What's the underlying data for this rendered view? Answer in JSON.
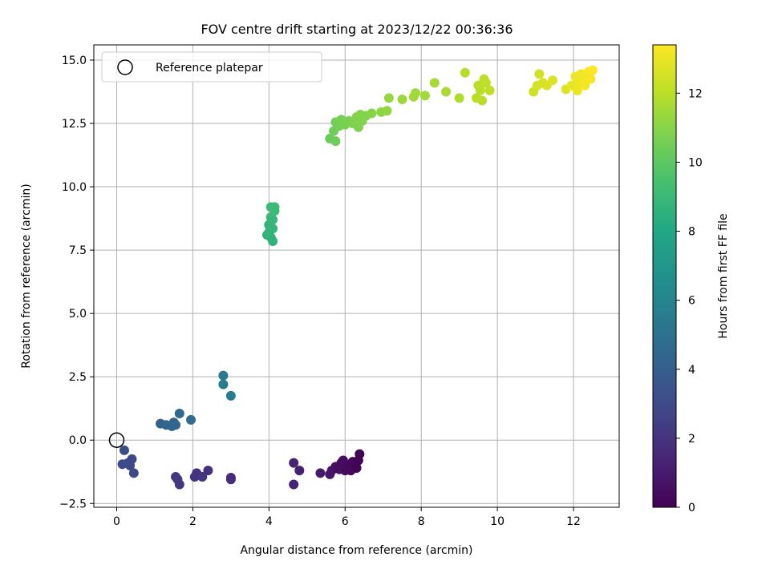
{
  "chart_data": {
    "type": "scatter",
    "title": "FOV centre drift starting at 2023/12/22 00:36:36",
    "xlabel": "Angular distance from reference (arcmin)",
    "ylabel": "Rotation from reference (arcmin)",
    "xlim": [
      -0.6,
      13.2
    ],
    "ylim": [
      -2.65,
      15.6
    ],
    "x_ticks": [
      0,
      2,
      4,
      6,
      8,
      10,
      12
    ],
    "x_tick_labels": [
      "0",
      "2",
      "4",
      "6",
      "8",
      "10",
      "12"
    ],
    "y_ticks": [
      -2.5,
      0.0,
      2.5,
      5.0,
      7.5,
      10.0,
      12.5,
      15.0
    ],
    "y_tick_labels": [
      "−2.5",
      "0.0",
      "2.5",
      "5.0",
      "7.5",
      "10.0",
      "12.5",
      "15.0"
    ],
    "grid": true,
    "colormap": "viridis",
    "colorbar": {
      "label": "Hours from first FF file",
      "min": 0,
      "max": 13.4,
      "ticks": [
        0,
        2,
        4,
        6,
        8,
        10,
        12
      ],
      "tick_labels": [
        "0",
        "2",
        "4",
        "6",
        "8",
        "10",
        "12"
      ]
    },
    "legend": {
      "position": "top-left",
      "entries": [
        "Reference platepar"
      ]
    },
    "reference_point": {
      "x": 0.0,
      "y": 0.0,
      "marker": "open-circle",
      "color": "#000000"
    },
    "points": [
      {
        "x": 4.65,
        "y": -0.9,
        "c": 1.3
      },
      {
        "x": 4.8,
        "y": -1.2,
        "c": 1.2
      },
      {
        "x": 4.65,
        "y": -1.75,
        "c": 1.3
      },
      {
        "x": 5.35,
        "y": -1.3,
        "c": 0.9
      },
      {
        "x": 5.6,
        "y": -1.35,
        "c": 0.8
      },
      {
        "x": 5.65,
        "y": -1.2,
        "c": 0.7
      },
      {
        "x": 5.75,
        "y": -1.05,
        "c": 0.6
      },
      {
        "x": 5.85,
        "y": -1.15,
        "c": 0.5
      },
      {
        "x": 5.95,
        "y": -0.8,
        "c": 0.4
      },
      {
        "x": 6.05,
        "y": -1.0,
        "c": 0.3
      },
      {
        "x": 6.15,
        "y": -1.2,
        "c": 0.3
      },
      {
        "x": 6.2,
        "y": -0.85,
        "c": 0.2
      },
      {
        "x": 6.3,
        "y": -1.1,
        "c": 0.1
      },
      {
        "x": 6.35,
        "y": -0.8,
        "c": 0.05
      },
      {
        "x": 6.38,
        "y": -0.55,
        "c": 0.0
      },
      {
        "x": 5.9,
        "y": -0.9,
        "c": 0.4
      },
      {
        "x": 6.0,
        "y": -1.2,
        "c": 0.35
      },
      {
        "x": 1.55,
        "y": -1.45,
        "c": 2.1
      },
      {
        "x": 1.6,
        "y": -1.55,
        "c": 2.2
      },
      {
        "x": 1.65,
        "y": -1.75,
        "c": 2.2
      },
      {
        "x": 2.05,
        "y": -1.45,
        "c": 2.0
      },
      {
        "x": 2.1,
        "y": -1.3,
        "c": 1.9
      },
      {
        "x": 2.25,
        "y": -1.45,
        "c": 2.0
      },
      {
        "x": 2.4,
        "y": -1.2,
        "c": 1.8
      },
      {
        "x": 3.0,
        "y": -1.55,
        "c": 1.7
      },
      {
        "x": 3.0,
        "y": -1.48,
        "c": 1.7
      },
      {
        "x": 0.15,
        "y": -0.95,
        "c": 3.0
      },
      {
        "x": 0.2,
        "y": -0.4,
        "c": 3.2
      },
      {
        "x": 0.3,
        "y": -0.9,
        "c": 3.1
      },
      {
        "x": 0.35,
        "y": -1.0,
        "c": 3.0
      },
      {
        "x": 0.4,
        "y": -0.75,
        "c": 3.0
      },
      {
        "x": 0.45,
        "y": -1.3,
        "c": 2.9
      },
      {
        "x": 1.15,
        "y": 0.65,
        "c": 4.2
      },
      {
        "x": 1.3,
        "y": 0.6,
        "c": 4.3
      },
      {
        "x": 1.45,
        "y": 0.55,
        "c": 4.3
      },
      {
        "x": 1.5,
        "y": 0.7,
        "c": 4.4
      },
      {
        "x": 1.55,
        "y": 0.6,
        "c": 4.4
      },
      {
        "x": 1.65,
        "y": 1.05,
        "c": 4.6
      },
      {
        "x": 1.95,
        "y": 0.8,
        "c": 4.7
      },
      {
        "x": 2.8,
        "y": 2.55,
        "c": 5.4
      },
      {
        "x": 2.8,
        "y": 2.2,
        "c": 5.5
      },
      {
        "x": 3.0,
        "y": 1.75,
        "c": 5.5
      },
      {
        "x": 3.95,
        "y": 8.1,
        "c": 8.6
      },
      {
        "x": 4.0,
        "y": 8.5,
        "c": 8.7
      },
      {
        "x": 4.05,
        "y": 8.0,
        "c": 8.7
      },
      {
        "x": 4.0,
        "y": 8.2,
        "c": 8.8
      },
      {
        "x": 4.05,
        "y": 8.8,
        "c": 8.9
      },
      {
        "x": 4.05,
        "y": 9.2,
        "c": 9.0
      },
      {
        "x": 4.1,
        "y": 8.7,
        "c": 8.9
      },
      {
        "x": 4.15,
        "y": 9.05,
        "c": 9.1
      },
      {
        "x": 4.1,
        "y": 7.85,
        "c": 8.6
      },
      {
        "x": 4.15,
        "y": 9.2,
        "c": 9.1
      },
      {
        "x": 4.1,
        "y": 8.35,
        "c": 8.8
      },
      {
        "x": 5.6,
        "y": 11.9,
        "c": 10.3
      },
      {
        "x": 5.75,
        "y": 11.8,
        "c": 10.4
      },
      {
        "x": 5.7,
        "y": 12.2,
        "c": 10.4
      },
      {
        "x": 5.75,
        "y": 12.55,
        "c": 10.5
      },
      {
        "x": 5.85,
        "y": 12.4,
        "c": 10.6
      },
      {
        "x": 5.9,
        "y": 12.65,
        "c": 10.6
      },
      {
        "x": 6.0,
        "y": 12.45,
        "c": 10.7
      },
      {
        "x": 6.1,
        "y": 12.6,
        "c": 10.7
      },
      {
        "x": 6.2,
        "y": 12.5,
        "c": 10.8
      },
      {
        "x": 6.3,
        "y": 12.75,
        "c": 10.8
      },
      {
        "x": 6.35,
        "y": 12.35,
        "c": 10.8
      },
      {
        "x": 6.45,
        "y": 12.6,
        "c": 10.9
      },
      {
        "x": 6.55,
        "y": 12.8,
        "c": 10.9
      },
      {
        "x": 6.4,
        "y": 12.85,
        "c": 10.9
      },
      {
        "x": 6.7,
        "y": 12.9,
        "c": 11.0
      },
      {
        "x": 6.95,
        "y": 12.95,
        "c": 11.1
      },
      {
        "x": 7.1,
        "y": 13.0,
        "c": 11.2
      },
      {
        "x": 7.15,
        "y": 13.5,
        "c": 11.3
      },
      {
        "x": 7.5,
        "y": 13.45,
        "c": 11.4
      },
      {
        "x": 7.8,
        "y": 13.55,
        "c": 11.5
      },
      {
        "x": 7.85,
        "y": 13.7,
        "c": 11.5
      },
      {
        "x": 8.1,
        "y": 13.6,
        "c": 11.5
      },
      {
        "x": 8.35,
        "y": 14.1,
        "c": 11.6
      },
      {
        "x": 8.65,
        "y": 13.75,
        "c": 11.7
      },
      {
        "x": 9.0,
        "y": 13.5,
        "c": 11.8
      },
      {
        "x": 9.15,
        "y": 14.5,
        "c": 11.9
      },
      {
        "x": 9.45,
        "y": 13.5,
        "c": 12.0
      },
      {
        "x": 9.5,
        "y": 14.0,
        "c": 12.0
      },
      {
        "x": 9.55,
        "y": 13.8,
        "c": 12.0
      },
      {
        "x": 9.6,
        "y": 13.4,
        "c": 12.0
      },
      {
        "x": 9.7,
        "y": 14.1,
        "c": 12.1
      },
      {
        "x": 9.65,
        "y": 14.25,
        "c": 12.1
      },
      {
        "x": 9.8,
        "y": 13.8,
        "c": 12.1
      },
      {
        "x": 10.95,
        "y": 13.75,
        "c": 12.4
      },
      {
        "x": 11.05,
        "y": 14.0,
        "c": 12.5
      },
      {
        "x": 11.1,
        "y": 14.45,
        "c": 12.5
      },
      {
        "x": 11.2,
        "y": 14.1,
        "c": 12.6
      },
      {
        "x": 11.3,
        "y": 14.0,
        "c": 12.6
      },
      {
        "x": 11.45,
        "y": 14.2,
        "c": 12.7
      },
      {
        "x": 11.8,
        "y": 13.85,
        "c": 12.8
      },
      {
        "x": 11.95,
        "y": 14.0,
        "c": 12.9
      },
      {
        "x": 12.05,
        "y": 14.35,
        "c": 13.0
      },
      {
        "x": 12.1,
        "y": 13.8,
        "c": 13.0
      },
      {
        "x": 12.15,
        "y": 14.1,
        "c": 13.1
      },
      {
        "x": 12.25,
        "y": 14.2,
        "c": 13.1
      },
      {
        "x": 12.3,
        "y": 14.0,
        "c": 13.2
      },
      {
        "x": 12.35,
        "y": 14.3,
        "c": 13.2
      },
      {
        "x": 12.4,
        "y": 14.55,
        "c": 13.3
      },
      {
        "x": 12.45,
        "y": 14.25,
        "c": 13.3
      },
      {
        "x": 12.5,
        "y": 14.6,
        "c": 13.4
      },
      {
        "x": 12.2,
        "y": 14.45,
        "c": 13.2
      }
    ]
  }
}
